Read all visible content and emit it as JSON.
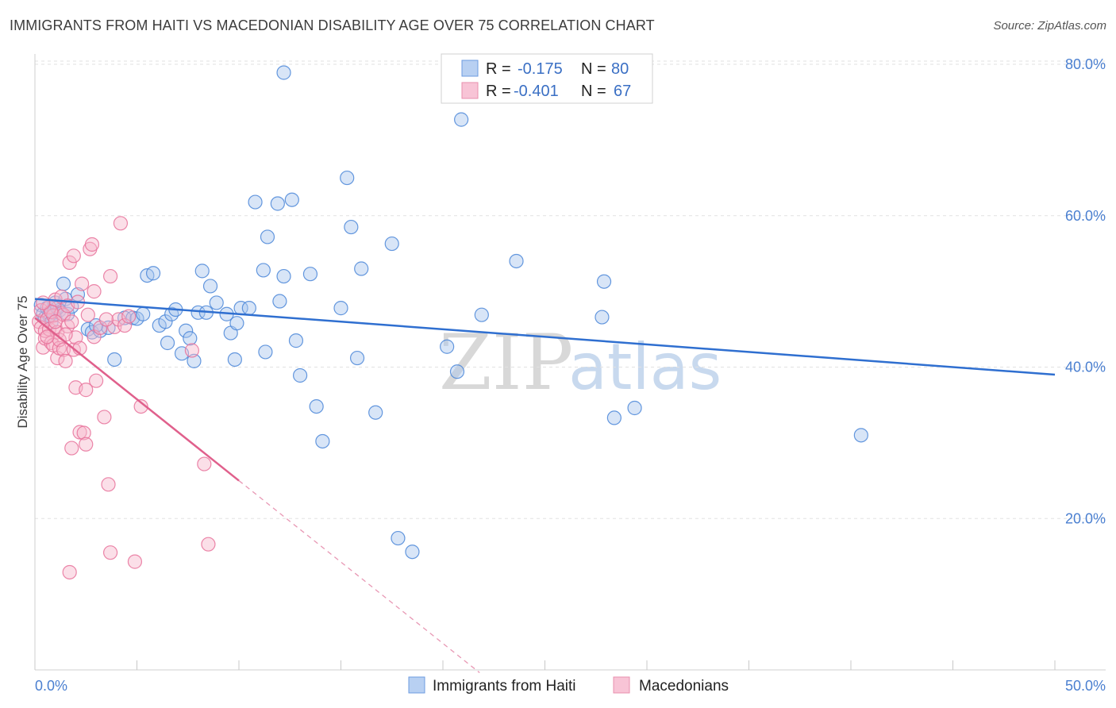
{
  "title": "IMMIGRANTS FROM HAITI VS MACEDONIAN DISABILITY AGE OVER 75 CORRELATION CHART",
  "source": "Source: ZipAtlas.com",
  "chart_data": {
    "type": "scatter",
    "title": "IMMIGRANTS FROM HAITI VS MACEDONIAN DISABILITY AGE OVER 75 CORRELATION CHART",
    "xlabel": "",
    "ylabel": "Disability Age Over 75",
    "xlim": [
      0,
      50
    ],
    "ylim": [
      0,
      82
    ],
    "x_tick_labels": [
      "0.0%",
      "50.0%"
    ],
    "y_ticks": [
      20,
      40,
      60,
      80
    ],
    "y_tick_labels": [
      "20.0%",
      "40.0%",
      "60.0%",
      "80.0%"
    ],
    "grid": true,
    "watermark": {
      "zip": "ZIP",
      "atlas": "atlas"
    },
    "legend_top": [
      {
        "series": "Immigrants from Haiti",
        "r_label": "R =",
        "r_value": "-0.175",
        "n_label": "N =",
        "n_value": "80"
      },
      {
        "series": "Macedonians",
        "r_label": "R =",
        "r_value": "-0.401",
        "n_label": "N =",
        "n_value": "67"
      }
    ],
    "series": [
      {
        "name": "Immigrants from Haiti",
        "color": "#4a86d8",
        "fill": "#a9c6ee",
        "trend": {
          "x0": 0,
          "y0": 49.0,
          "x1": 50,
          "y1": 39.0
        },
        "points": [
          [
            0.3,
            48.2
          ],
          [
            0.4,
            47.0
          ],
          [
            0.5,
            46.5
          ],
          [
            0.6,
            47.8
          ],
          [
            0.7,
            46.8
          ],
          [
            0.8,
            45.9
          ],
          [
            0.9,
            47.2
          ],
          [
            1.0,
            48.5
          ],
          [
            1.2,
            47.5
          ],
          [
            1.4,
            51.0
          ],
          [
            1.5,
            49.0
          ],
          [
            1.6,
            47.0
          ],
          [
            1.8,
            48.0
          ],
          [
            2.1,
            49.6
          ],
          [
            2.6,
            45.0
          ],
          [
            2.8,
            44.6
          ],
          [
            3.2,
            44.8
          ],
          [
            3.6,
            45.2
          ],
          [
            3.9,
            41.0
          ],
          [
            4.4,
            46.5
          ],
          [
            4.8,
            46.5
          ],
          [
            5.0,
            46.4
          ],
          [
            5.3,
            47.0
          ],
          [
            5.5,
            52.1
          ],
          [
            5.8,
            52.4
          ],
          [
            6.1,
            45.5
          ],
          [
            6.4,
            46.0
          ],
          [
            6.5,
            43.2
          ],
          [
            6.7,
            47.0
          ],
          [
            6.9,
            47.6
          ],
          [
            7.2,
            41.8
          ],
          [
            7.4,
            44.8
          ],
          [
            7.6,
            43.8
          ],
          [
            7.8,
            40.8
          ],
          [
            8.0,
            47.2
          ],
          [
            8.2,
            52.7
          ],
          [
            8.4,
            47.2
          ],
          [
            8.6,
            50.7
          ],
          [
            8.9,
            48.5
          ],
          [
            9.4,
            47.0
          ],
          [
            9.6,
            44.5
          ],
          [
            9.8,
            41.0
          ],
          [
            9.9,
            45.8
          ],
          [
            10.1,
            47.8
          ],
          [
            10.5,
            47.8
          ],
          [
            10.8,
            61.8
          ],
          [
            11.2,
            52.8
          ],
          [
            11.3,
            42.0
          ],
          [
            11.4,
            57.2
          ],
          [
            11.9,
            61.6
          ],
          [
            12.0,
            48.7
          ],
          [
            12.2,
            52.0
          ],
          [
            12.6,
            62.1
          ],
          [
            12.8,
            43.5
          ],
          [
            13.0,
            38.9
          ],
          [
            13.5,
            52.3
          ],
          [
            13.8,
            34.8
          ],
          [
            14.1,
            30.2
          ],
          [
            15.0,
            47.8
          ],
          [
            15.3,
            65.0
          ],
          [
            15.5,
            58.5
          ],
          [
            15.8,
            41.2
          ],
          [
            16.0,
            53.0
          ],
          [
            16.7,
            34.0
          ],
          [
            17.5,
            56.3
          ],
          [
            17.8,
            17.4
          ],
          [
            18.5,
            15.6
          ],
          [
            20.2,
            42.7
          ],
          [
            20.7,
            39.4
          ],
          [
            20.9,
            72.7
          ],
          [
            21.9,
            46.9
          ],
          [
            23.6,
            54.0
          ],
          [
            27.8,
            46.6
          ],
          [
            27.9,
            51.3
          ],
          [
            28.4,
            33.3
          ],
          [
            29.4,
            34.6
          ],
          [
            40.5,
            31.0
          ],
          [
            12.2,
            78.9
          ],
          [
            3.0,
            45.5
          ],
          [
            1.1,
            47.8
          ]
        ]
      },
      {
        "name": "Macedonians",
        "color": "#e8719a",
        "fill": "#f6b8cd",
        "trend": {
          "x0": 0,
          "y0": 46.5,
          "x1": 10.0,
          "y1": 25.0,
          "dash_to_x": 21.8
        },
        "points": [
          [
            0.2,
            46.0
          ],
          [
            0.3,
            45.2
          ],
          [
            0.3,
            47.5
          ],
          [
            0.4,
            42.6
          ],
          [
            0.5,
            43.8
          ],
          [
            0.5,
            44.8
          ],
          [
            0.6,
            46.3
          ],
          [
            0.7,
            47.9
          ],
          [
            0.7,
            45.0
          ],
          [
            0.8,
            43.2
          ],
          [
            0.9,
            46.8
          ],
          [
            0.9,
            42.9
          ],
          [
            1.0,
            48.9
          ],
          [
            1.0,
            45.2
          ],
          [
            1.1,
            44.6
          ],
          [
            1.1,
            41.2
          ],
          [
            1.2,
            42.5
          ],
          [
            1.2,
            43.6
          ],
          [
            1.3,
            47.1
          ],
          [
            1.3,
            49.3
          ],
          [
            1.4,
            42.3
          ],
          [
            1.4,
            46.9
          ],
          [
            1.5,
            40.8
          ],
          [
            1.6,
            45.4
          ],
          [
            1.6,
            48.1
          ],
          [
            1.7,
            53.8
          ],
          [
            1.8,
            29.3
          ],
          [
            1.8,
            46.0
          ],
          [
            1.9,
            54.7
          ],
          [
            1.9,
            42.3
          ],
          [
            2.0,
            43.9
          ],
          [
            2.0,
            37.3
          ],
          [
            2.1,
            48.6
          ],
          [
            2.2,
            31.4
          ],
          [
            2.3,
            51.0
          ],
          [
            2.4,
            31.3
          ],
          [
            2.5,
            37.0
          ],
          [
            2.5,
            29.8
          ],
          [
            2.7,
            55.6
          ],
          [
            2.8,
            56.2
          ],
          [
            2.9,
            44.0
          ],
          [
            2.9,
            50.0
          ],
          [
            3.0,
            38.2
          ],
          [
            3.2,
            45.2
          ],
          [
            3.4,
            33.4
          ],
          [
            3.6,
            24.5
          ],
          [
            3.7,
            52.0
          ],
          [
            3.7,
            15.5
          ],
          [
            3.9,
            45.3
          ],
          [
            4.1,
            46.3
          ],
          [
            4.2,
            59.0
          ],
          [
            4.4,
            45.5
          ],
          [
            4.6,
            46.7
          ],
          [
            4.9,
            14.3
          ],
          [
            5.2,
            34.8
          ],
          [
            1.7,
            12.9
          ],
          [
            7.7,
            42.2
          ],
          [
            8.3,
            27.2
          ],
          [
            8.5,
            16.6
          ],
          [
            0.8,
            47.3
          ],
          [
            1.5,
            44.3
          ],
          [
            2.6,
            46.9
          ],
          [
            3.5,
            46.3
          ],
          [
            0.6,
            44.0
          ],
          [
            1.0,
            46.0
          ],
          [
            2.2,
            42.5
          ],
          [
            0.4,
            48.5
          ]
        ]
      }
    ]
  }
}
